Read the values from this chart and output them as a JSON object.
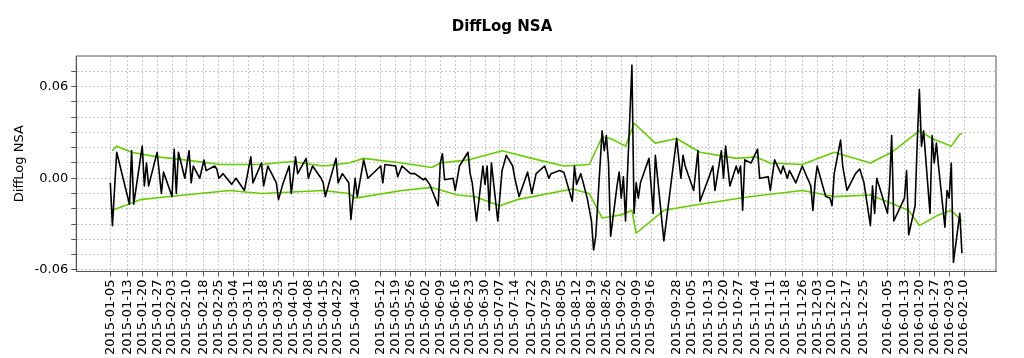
{
  "chart_data": {
    "type": "line",
    "title": "DiffLog NSA",
    "ylabel": "DiffLog NSA",
    "grid": true,
    "xlim": [
      "2014-12-20",
      "2016-02-25"
    ],
    "ylim": [
      -0.061,
      0.08
    ],
    "xticks": [
      "2015-01-05",
      "2015-01-13",
      "2015-01-20",
      "2015-01-27",
      "2015-02-03",
      "2015-02-10",
      "2015-02-18",
      "2015-02-25",
      "2015-03-04",
      "2015-03-11",
      "2015-03-18",
      "2015-03-25",
      "2015-04-01",
      "2015-04-08",
      "2015-04-15",
      "2015-04-22",
      "2015-04-30",
      "2015-05-12",
      "2015-05-19",
      "2015-05-26",
      "2015-06-02",
      "2015-06-09",
      "2015-06-16",
      "2015-06-23",
      "2015-06-30",
      "2015-07-07",
      "2015-07-14",
      "2015-07-22",
      "2015-07-29",
      "2015-08-05",
      "2015-08-12",
      "2015-08-19",
      "2015-08-26",
      "2015-09-02",
      "2015-09-09",
      "2015-09-16",
      "2015-09-28",
      "2015-10-05",
      "2015-10-13",
      "2015-10-20",
      "2015-10-27",
      "2015-11-04",
      "2015-11-11",
      "2015-11-18",
      "2015-11-26",
      "2015-12-03",
      "2015-12-10",
      "2015-12-17",
      "2015-12-25",
      "2016-01-05",
      "2016-01-13",
      "2016-01-20",
      "2016-01-27",
      "2016-02-03",
      "2016-02-10"
    ],
    "yticks": [
      {
        "value": -0.06,
        "label": "-0.06"
      },
      {
        "value": -0.05,
        "label": null
      },
      {
        "value": -0.04,
        "label": null
      },
      {
        "value": -0.03,
        "label": null
      },
      {
        "value": -0.02,
        "label": null
      },
      {
        "value": -0.01,
        "label": null
      },
      {
        "value": 0,
        "label": "0.00"
      },
      {
        "value": 0.01,
        "label": null
      },
      {
        "value": 0.02,
        "label": null
      },
      {
        "value": 0.03,
        "label": null
      },
      {
        "value": 0.04,
        "label": null
      },
      {
        "value": 0.05,
        "label": null
      },
      {
        "value": 0.06,
        "label": "0.06"
      },
      {
        "value": 0.07,
        "label": null
      }
    ],
    "series": [
      {
        "color": "#000000",
        "x": [
          "2015-01-05",
          "2015-01-06",
          "2015-01-08",
          "2015-01-14",
          "2015-01-15",
          "2015-01-16",
          "2015-01-20",
          "2015-01-21",
          "2015-01-22",
          "2015-01-23",
          "2015-01-27",
          "2015-01-29",
          "2015-01-30",
          "2015-02-03",
          "2015-02-04",
          "2015-02-05",
          "2015-02-06",
          "2015-02-09",
          "2015-02-11",
          "2015-02-12",
          "2015-02-13",
          "2015-02-16",
          "2015-02-18",
          "2015-02-19",
          "2015-02-23",
          "2015-02-24",
          "2015-02-25",
          "2015-02-27",
          "2015-03-03",
          "2015-03-05",
          "2015-03-09",
          "2015-03-12",
          "2015-03-13",
          "2015-03-17",
          "2015-03-18",
          "2015-03-20",
          "2015-03-24",
          "2015-03-25",
          "2015-03-27",
          "2015-03-30",
          "2015-03-31",
          "2015-04-02",
          "2015-04-03",
          "2015-04-07",
          "2015-04-08",
          "2015-04-10",
          "2015-04-14",
          "2015-04-15",
          "2015-04-16",
          "2015-04-21",
          "2015-04-22",
          "2015-04-24",
          "2015-04-27",
          "2015-04-28",
          "2015-04-30",
          "2015-05-01",
          "2015-05-04",
          "2015-05-06",
          "2015-05-12",
          "2015-05-13",
          "2015-05-14",
          "2015-05-19",
          "2015-05-20",
          "2015-05-22",
          "2015-05-26",
          "2015-05-28",
          "2015-06-01",
          "2015-06-02",
          "2015-06-04",
          "2015-06-08",
          "2015-06-09",
          "2015-06-10",
          "2015-06-11",
          "2015-06-15",
          "2015-06-16",
          "2015-06-18",
          "2015-06-22",
          "2015-06-23",
          "2015-06-24",
          "2015-06-26",
          "2015-06-29",
          "2015-06-30",
          "2015-07-01",
          "2015-07-02",
          "2015-07-03",
          "2015-07-06",
          "2015-07-08",
          "2015-07-10",
          "2015-07-13",
          "2015-07-14",
          "2015-07-16",
          "2015-07-20",
          "2015-07-22",
          "2015-07-24",
          "2015-07-28",
          "2015-07-30",
          "2015-07-31",
          "2015-08-04",
          "2015-08-06",
          "2015-08-10",
          "2015-08-11",
          "2015-08-12",
          "2015-08-14",
          "2015-08-17",
          "2015-08-19",
          "2015-08-20",
          "2015-08-21",
          "2015-08-24",
          "2015-08-25",
          "2015-08-26",
          "2015-08-27",
          "2015-08-28",
          "2015-08-31",
          "2015-09-01",
          "2015-09-02",
          "2015-09-03",
          "2015-09-04",
          "2015-09-07",
          "2015-09-08",
          "2015-09-09",
          "2015-09-10",
          "2015-09-11",
          "2015-09-15",
          "2015-09-17",
          "2015-09-18",
          "2015-09-22",
          "2015-09-28",
          "2015-09-30",
          "2015-10-01",
          "2015-10-02",
          "2015-10-06",
          "2015-10-08",
          "2015-10-09",
          "2015-10-13",
          "2015-10-15",
          "2015-10-16",
          "2015-10-19",
          "2015-10-20",
          "2015-10-21",
          "2015-10-23",
          "2015-10-26",
          "2015-10-27",
          "2015-10-28",
          "2015-10-29",
          "2015-10-30",
          "2015-11-02",
          "2015-11-05",
          "2015-11-06",
          "2015-11-10",
          "2015-11-11",
          "2015-11-13",
          "2015-11-16",
          "2015-11-17",
          "2015-11-19",
          "2015-11-20",
          "2015-11-23",
          "2015-11-26",
          "2015-11-30",
          "2015-12-01",
          "2015-12-02",
          "2015-12-03",
          "2015-12-07",
          "2015-12-09",
          "2015-12-10",
          "2015-12-11",
          "2015-12-14",
          "2015-12-15",
          "2015-12-17",
          "2015-12-21",
          "2015-12-23",
          "2015-12-25",
          "2015-12-28",
          "2015-12-29",
          "2015-12-30",
          "2015-12-31",
          "2016-01-05",
          "2016-01-06",
          "2016-01-07",
          "2016-01-08",
          "2016-01-13",
          "2016-01-14",
          "2016-01-15",
          "2016-01-18",
          "2016-01-19",
          "2016-01-20",
          "2016-01-21",
          "2016-01-22",
          "2016-01-25",
          "2016-01-26",
          "2016-01-27",
          "2016-01-28",
          "2016-01-29",
          "2016-02-01",
          "2016-02-02",
          "2016-02-03",
          "2016-02-04",
          "2016-02-05",
          "2016-02-08",
          "2016-02-09"
        ],
        "values": [
          -0.003,
          -0.031,
          0.017,
          -0.017,
          0.018,
          -0.017,
          0.021,
          -0.005,
          0.01,
          -0.005,
          0.017,
          -0.01,
          0.004,
          -0.012,
          0.019,
          -0.01,
          0.017,
          0.0,
          0.018,
          -0.003,
          0.008,
          0.0,
          0.012,
          0.005,
          0.008,
          0.006,
          0.0,
          0.003,
          -0.004,
          0.0,
          -0.008,
          0.014,
          -0.003,
          0.01,
          -0.005,
          0.008,
          -0.003,
          -0.014,
          -0.004,
          0.008,
          -0.01,
          0.014,
          0.003,
          0.013,
          0.0,
          0.008,
          0.0,
          -0.003,
          -0.012,
          0.013,
          -0.003,
          0.003,
          -0.003,
          -0.027,
          0.0,
          -0.012,
          0.012,
          0.0,
          0.008,
          -0.003,
          0.009,
          0.008,
          0.001,
          0.008,
          0.003,
          0.003,
          -0.001,
          0.0,
          -0.004,
          -0.018,
          0.01,
          0.016,
          -0.001,
          0.0,
          -0.008,
          0.008,
          0.017,
          0.003,
          -0.003,
          -0.028,
          0.008,
          -0.004,
          0.008,
          -0.021,
          0.01,
          -0.028,
          0.005,
          0.015,
          0.008,
          0.0,
          -0.012,
          0.004,
          -0.01,
          0.003,
          0.008,
          0.0,
          0.003,
          0.005,
          0.004,
          -0.015,
          0.008,
          -0.004,
          0.003,
          -0.013,
          -0.028,
          -0.047,
          -0.038,
          0.031,
          0.018,
          0.028,
          0.01,
          -0.038,
          -0.005,
          0.004,
          -0.013,
          0.001,
          -0.028,
          0.074,
          -0.023,
          -0.003,
          -0.013,
          -0.003,
          0.013,
          -0.023,
          0.015,
          -0.041,
          0.026,
          0.0,
          0.015,
          0.008,
          -0.008,
          0.018,
          -0.015,
          0.0,
          0.008,
          -0.008,
          0.018,
          0.0,
          0.021,
          -0.005,
          0.008,
          0.003,
          0.008,
          -0.021,
          0.012,
          0.01,
          0.019,
          0.0,
          0.001,
          -0.008,
          0.012,
          0.003,
          0.008,
          0.0,
          0.005,
          -0.003,
          0.008,
          -0.005,
          -0.021,
          -0.003,
          0.008,
          -0.012,
          -0.013,
          -0.018,
          0.003,
          0.025,
          0.008,
          -0.008,
          0.003,
          0.006,
          -0.003,
          -0.031,
          -0.005,
          -0.023,
          0.0,
          -0.023,
          -0.005,
          0.028,
          -0.028,
          -0.013,
          0.005,
          -0.037,
          -0.018,
          0.023,
          0.058,
          0.021,
          0.031,
          -0.023,
          0.028,
          0.01,
          0.023,
          0.008,
          -0.032,
          -0.008,
          -0.013,
          0.01,
          -0.055,
          -0.023,
          -0.049
        ]
      },
      {
        "color": "#66cc00",
        "x": [
          "2015-01-06",
          "2015-01-08",
          "2015-01-15",
          "2015-01-27",
          "2015-02-09",
          "2015-02-26",
          "2015-03-17",
          "2015-03-31",
          "2015-04-15",
          "2015-04-27",
          "2015-05-04",
          "2015-05-22",
          "2015-06-05",
          "2015-06-09",
          "2015-06-22",
          "2015-07-08",
          "2015-07-22",
          "2015-08-06",
          "2015-08-18",
          "2015-08-24",
          "2015-08-28",
          "2015-09-04",
          "2015-09-08",
          "2015-09-18",
          "2015-09-28",
          "2015-10-09",
          "2015-10-26",
          "2015-11-04",
          "2015-11-11",
          "2015-11-26",
          "2015-12-11",
          "2015-12-28",
          "2016-01-07",
          "2016-01-20",
          "2016-01-26",
          "2016-02-04",
          "2016-02-08",
          "2016-02-09"
        ],
        "values": [
          0.018,
          0.021,
          0.017,
          0.014,
          0.012,
          0.009,
          0.009,
          0.011,
          0.008,
          0.01,
          0.013,
          0.01,
          0.007,
          0.01,
          0.012,
          0.018,
          0.013,
          0.008,
          0.009,
          0.027,
          0.026,
          0.021,
          0.036,
          0.023,
          0.026,
          0.017,
          0.013,
          0.014,
          0.01,
          0.009,
          0.017,
          0.01,
          0.017,
          0.031,
          0.026,
          0.021,
          0.029,
          0.029
        ]
      },
      {
        "color": "#66cc00",
        "x": [
          "2015-01-06",
          "2015-01-19",
          "2015-02-02",
          "2015-03-02",
          "2015-03-17",
          "2015-04-15",
          "2015-04-27",
          "2015-04-30",
          "2015-05-22",
          "2015-06-05",
          "2015-06-17",
          "2015-06-25",
          "2015-07-07",
          "2015-07-15",
          "2015-08-10",
          "2015-08-18",
          "2015-08-24",
          "2015-09-02",
          "2015-09-07",
          "2015-09-09",
          "2015-09-22",
          "2015-10-09",
          "2015-11-02",
          "2015-11-26",
          "2015-12-11",
          "2015-12-28",
          "2016-01-15",
          "2016-01-20",
          "2016-01-29",
          "2016-02-04",
          "2016-02-09"
        ],
        "values": [
          -0.021,
          -0.014,
          -0.012,
          -0.008,
          -0.01,
          -0.008,
          -0.01,
          -0.013,
          -0.008,
          -0.006,
          -0.011,
          -0.012,
          -0.018,
          -0.014,
          -0.007,
          -0.01,
          -0.026,
          -0.024,
          -0.021,
          -0.036,
          -0.021,
          -0.017,
          -0.012,
          -0.008,
          -0.012,
          -0.011,
          -0.021,
          -0.031,
          -0.024,
          -0.021,
          -0.028
        ]
      }
    ]
  }
}
